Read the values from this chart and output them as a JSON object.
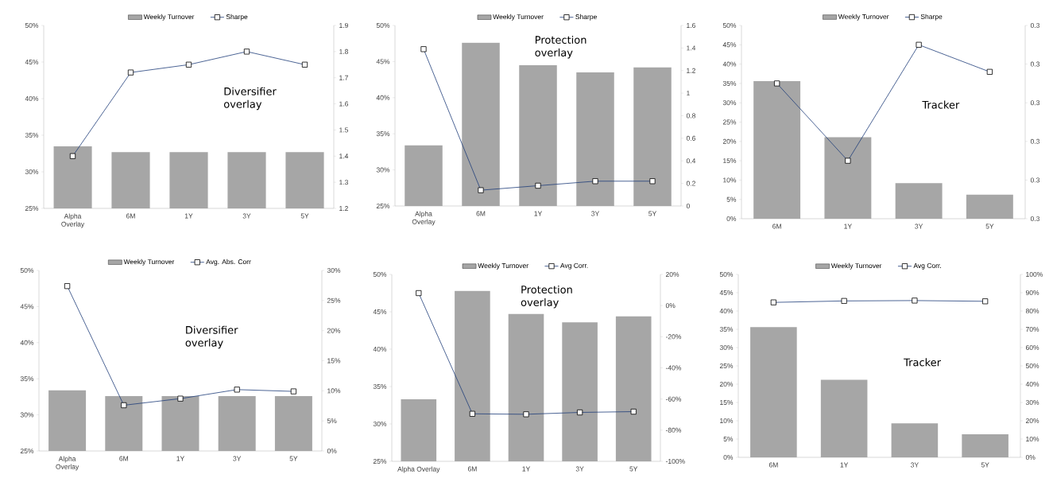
{
  "chart_data": [
    {
      "type": "bar",
      "categories": [
        "Alpha Overlay",
        "6M",
        "1Y",
        "3Y",
        "5Y"
      ],
      "series": [
        {
          "name": "Weekly Turnover",
          "color": "#a6a6a6",
          "values": [
            33.5,
            32.7,
            32.7,
            32.7,
            32.7
          ]
        },
        {
          "name": "Sharpe",
          "type": "line",
          "axis": "y2",
          "color": "#1f3d7a",
          "values": [
            1.4,
            1.72,
            1.75,
            1.8,
            1.75
          ]
        }
      ],
      "ylim": [
        25,
        50
      ],
      "yticks": [
        {
          "value": 25,
          "label": "25%"
        },
        {
          "value": 30,
          "label": "30%"
        },
        {
          "value": 35,
          "label": "35%"
        },
        {
          "value": 40,
          "label": "40%"
        },
        {
          "value": 45,
          "label": "45%"
        },
        {
          "value": 50,
          "label": "50%"
        }
      ],
      "y2lim": [
        1.2,
        1.9
      ],
      "y2ticks": [
        1.2,
        1.3,
        1.4,
        1.5,
        1.6,
        1.7,
        1.8,
        1.9
      ],
      "legend": "top",
      "marker": "square",
      "annotations": [
        "Diversifier overlay"
      ]
    },
    {
      "type": "bar",
      "categories": [
        "Alpha Overlay",
        "6M",
        "1Y",
        "3Y",
        "5Y"
      ],
      "series": [
        {
          "name": "Weekly Turnover",
          "color": "#a6a6a6",
          "values": [
            33.4,
            47.6,
            44.5,
            43.5,
            44.2
          ]
        },
        {
          "name": "Sharpe",
          "type": "line",
          "axis": "y2",
          "color": "#1f3d7a",
          "values": [
            1.39,
            0.14,
            0.18,
            0.22,
            0.22
          ]
        }
      ],
      "ylim": [
        25,
        50
      ],
      "yticks": [
        {
          "value": 25,
          "label": "25%"
        },
        {
          "value": 30,
          "label": "30%"
        },
        {
          "value": 35,
          "label": "35%"
        },
        {
          "value": 40,
          "label": "40%"
        },
        {
          "value": 45,
          "label": "45%"
        },
        {
          "value": 50,
          "label": "50%"
        }
      ],
      "y2lim": [
        0,
        1.6
      ],
      "y2ticks": [
        0,
        0.2,
        0.4,
        0.6,
        0.8,
        1,
        1.2,
        1.4,
        1.6
      ],
      "legend": "top",
      "marker": "square",
      "annotations": [
        "Protection overlay"
      ]
    },
    {
      "type": "bar",
      "categories": [
        "6M",
        "1Y",
        "3Y",
        "5Y"
      ],
      "series": [
        {
          "name": "Weekly Turnover",
          "color": "#a6a6a6",
          "values": [
            35.6,
            21.1,
            9.2,
            6.2
          ]
        },
        {
          "name": "Sharpe",
          "type": "line",
          "axis": "y2",
          "color": "#1f3d7a",
          "values": [
            0.335,
            0.315,
            0.345,
            0.338
          ]
        }
      ],
      "ylim": [
        0,
        50
      ],
      "yticks": [
        {
          "value": 0,
          "label": "0%"
        },
        {
          "value": 5,
          "label": "5%"
        },
        {
          "value": 10,
          "label": "10%"
        },
        {
          "value": 15,
          "label": "15%"
        },
        {
          "value": 20,
          "label": "20%"
        },
        {
          "value": 25,
          "label": "25%"
        },
        {
          "value": 30,
          "label": "30%"
        },
        {
          "value": 35,
          "label": "35%"
        },
        {
          "value": 40,
          "label": "40%"
        },
        {
          "value": 45,
          "label": "45%"
        },
        {
          "value": 50,
          "label": "50%"
        }
      ],
      "y2lim": [
        0.3,
        0.35
      ],
      "y2ticks": [
        {
          "value": 0.3,
          "label": "0.3"
        },
        {
          "value": 0.31,
          "label": "0.3"
        },
        {
          "value": 0.32,
          "label": "0.3"
        },
        {
          "value": 0.33,
          "label": "0.3"
        },
        {
          "value": 0.34,
          "label": "0.3"
        },
        {
          "value": 0.35,
          "label": "0.3"
        }
      ],
      "legend": "top",
      "marker": "square",
      "annotations": [
        "Tracker"
      ]
    },
    {
      "type": "bar",
      "categories": [
        "Alpha Overlay",
        "6M",
        "1Y",
        "3Y",
        "5Y"
      ],
      "series": [
        {
          "name": "Weekly Turnover",
          "color": "#a6a6a6",
          "values": [
            33.4,
            32.6,
            32.6,
            32.6,
            32.6
          ]
        },
        {
          "name": "Avg. Abs. Corr",
          "type": "line",
          "axis": "y2",
          "color": "#1f3d7a",
          "values": [
            27.4,
            7.6,
            8.7,
            10.2,
            9.9
          ]
        }
      ],
      "ylim": [
        25,
        50
      ],
      "yticks": [
        {
          "value": 25,
          "label": "25%"
        },
        {
          "value": 30,
          "label": "30%"
        },
        {
          "value": 35,
          "label": "35%"
        },
        {
          "value": 40,
          "label": "40%"
        },
        {
          "value": 45,
          "label": "45%"
        },
        {
          "value": 50,
          "label": "50%"
        }
      ],
      "y2lim": [
        0,
        30
      ],
      "y2ticks": [
        {
          "value": 0,
          "label": "0%"
        },
        {
          "value": 5,
          "label": "5%"
        },
        {
          "value": 10,
          "label": "10%"
        },
        {
          "value": 15,
          "label": "15%"
        },
        {
          "value": 20,
          "label": "20%"
        },
        {
          "value": 25,
          "label": "25%"
        },
        {
          "value": 30,
          "label": "30%"
        }
      ],
      "legend": "top",
      "marker": "square",
      "annotations": [
        "Diversifier overlay"
      ]
    },
    {
      "type": "bar",
      "categories": [
        "Alpha Overlay",
        "6M",
        "1Y",
        "3Y",
        "5Y"
      ],
      "series": [
        {
          "name": "Weekly Turnover",
          "color": "#a6a6a6",
          "values": [
            33.3,
            47.8,
            44.7,
            43.6,
            44.4
          ]
        },
        {
          "name": "Avg Corr.",
          "type": "line",
          "axis": "y2",
          "color": "#1f3d7a",
          "values": [
            8,
            -69.5,
            -69.8,
            -68.6,
            -68.1
          ]
        }
      ],
      "ylim": [
        25,
        50
      ],
      "yticks": [
        {
          "value": 25,
          "label": "25%"
        },
        {
          "value": 30,
          "label": "30%"
        },
        {
          "value": 35,
          "label": "35%"
        },
        {
          "value": 40,
          "label": "40%"
        },
        {
          "value": 45,
          "label": "45%"
        },
        {
          "value": 50,
          "label": "50%"
        }
      ],
      "y2lim": [
        -100,
        20
      ],
      "y2ticks": [
        {
          "value": -100,
          "label": "-100%"
        },
        {
          "value": -80,
          "label": "-80%"
        },
        {
          "value": -60,
          "label": "-60%"
        },
        {
          "value": -40,
          "label": "-40%"
        },
        {
          "value": -20,
          "label": "-20%"
        },
        {
          "value": 0,
          "label": "0%"
        },
        {
          "value": 20,
          "label": "20%"
        }
      ],
      "legend": "top",
      "marker": "square",
      "annotations": [
        "Protection overlay"
      ]
    },
    {
      "type": "bar",
      "categories": [
        "6M",
        "1Y",
        "3Y",
        "5Y"
      ],
      "series": [
        {
          "name": "Weekly Turnover",
          "color": "#a6a6a6",
          "values": [
            35.6,
            21.2,
            9.3,
            6.3
          ]
        },
        {
          "name": "Avg Corr.",
          "type": "line",
          "axis": "y2",
          "color": "#1f3d7a",
          "values": [
            84.7,
            85.5,
            85.7,
            85.3
          ]
        }
      ],
      "ylim": [
        0,
        50
      ],
      "yticks": [
        {
          "value": 0,
          "label": "0%"
        },
        {
          "value": 5,
          "label": "5%"
        },
        {
          "value": 10,
          "label": "10%"
        },
        {
          "value": 15,
          "label": "15%"
        },
        {
          "value": 20,
          "label": "20%"
        },
        {
          "value": 25,
          "label": "25%"
        },
        {
          "value": 30,
          "label": "30%"
        },
        {
          "value": 35,
          "label": "35%"
        },
        {
          "value": 40,
          "label": "40%"
        },
        {
          "value": 45,
          "label": "45%"
        },
        {
          "value": 50,
          "label": "50%"
        }
      ],
      "y2lim": [
        0,
        100
      ],
      "y2ticks": [
        {
          "value": 0,
          "label": "0%"
        },
        {
          "value": 10,
          "label": "10%"
        },
        {
          "value": 20,
          "label": "20%"
        },
        {
          "value": 30,
          "label": "30%"
        },
        {
          "value": 40,
          "label": "40%"
        },
        {
          "value": 50,
          "label": "50%"
        },
        {
          "value": 60,
          "label": "60%"
        },
        {
          "value": 70,
          "label": "70%"
        },
        {
          "value": 80,
          "label": "80%"
        },
        {
          "value": 90,
          "label": "90%"
        },
        {
          "value": 100,
          "label": "100%"
        }
      ],
      "legend": "top",
      "marker": "square",
      "annotations": [
        "Tracker"
      ]
    }
  ]
}
